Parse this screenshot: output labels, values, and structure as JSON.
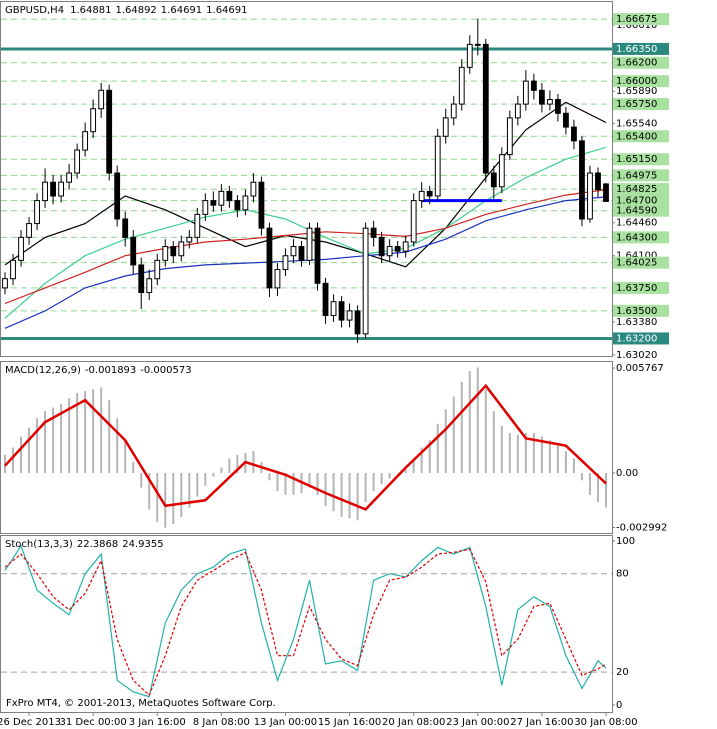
{
  "chart_data": [
    {
      "type": "candlestick",
      "title": "GBPUSD,H4",
      "xlim": [
        -0.5,
        75.75
      ],
      "ylim": [
        1.6302,
        1.6685
      ],
      "open": [
        1.6375,
        1.6385,
        1.6405,
        1.643,
        1.6445,
        1.647,
        1.649,
        1.6475,
        1.649,
        1.65,
        1.6525,
        1.6545,
        1.657,
        1.659,
        1.65,
        1.645,
        1.643,
        1.64,
        1.637,
        1.6385,
        1.6405,
        1.642,
        1.641,
        1.6425,
        1.643,
        1.6455,
        1.647,
        1.6465,
        1.648,
        1.647,
        1.646,
        1.6475,
        1.649,
        1.644,
        1.6375,
        1.6395,
        1.641,
        1.642,
        1.6405,
        1.644,
        1.638,
        1.6345,
        1.636,
        1.634,
        1.635,
        1.6325,
        1.644,
        1.643,
        1.641,
        1.642,
        1.6415,
        1.6425,
        1.647,
        1.648,
        1.6475,
        1.654,
        1.656,
        1.6575,
        1.6615,
        1.664,
        1.664,
        1.65,
        1.6485,
        1.652,
        1.656,
        1.6575,
        1.66,
        1.659,
        1.6575,
        1.658,
        1.6565,
        1.655,
        1.6535,
        1.645,
        1.65,
        1.64881
      ],
      "high": [
        1.6392,
        1.6412,
        1.6438,
        1.6452,
        1.6478,
        1.6505,
        1.6498,
        1.6498,
        1.651,
        1.6532,
        1.6555,
        1.658,
        1.6598,
        1.6596,
        1.6508,
        1.6458,
        1.6438,
        1.6408,
        1.6395,
        1.6412,
        1.6428,
        1.6426,
        1.6432,
        1.6438,
        1.6462,
        1.6478,
        1.648,
        1.6488,
        1.6486,
        1.6476,
        1.6482,
        1.65,
        1.6496,
        1.6446,
        1.6402,
        1.6418,
        1.6428,
        1.6426,
        1.6446,
        1.6446,
        1.6386,
        1.6368,
        1.6366,
        1.6358,
        1.6356,
        1.6446,
        1.6448,
        1.6436,
        1.6428,
        1.6426,
        1.6432,
        1.6478,
        1.649,
        1.6486,
        1.6548,
        1.657,
        1.6584,
        1.6624,
        1.665,
        1.6668,
        1.6646,
        1.6508,
        1.6528,
        1.6568,
        1.6584,
        1.6612,
        1.6608,
        1.6598,
        1.659,
        1.6586,
        1.6572,
        1.6558,
        1.654,
        1.6508,
        1.6506,
        1.64892
      ],
      "low": [
        1.6368,
        1.6378,
        1.6398,
        1.6422,
        1.6438,
        1.6462,
        1.6466,
        1.6468,
        1.6482,
        1.6494,
        1.6518,
        1.6538,
        1.656,
        1.6492,
        1.6442,
        1.642,
        1.639,
        1.6352,
        1.6362,
        1.6378,
        1.6398,
        1.6402,
        1.6404,
        1.6418,
        1.6424,
        1.6448,
        1.6458,
        1.6458,
        1.6462,
        1.6452,
        1.6454,
        1.6468,
        1.6432,
        1.6365,
        1.6366,
        1.6388,
        1.6402,
        1.6398,
        1.64,
        1.6372,
        1.6336,
        1.6338,
        1.6332,
        1.6332,
        1.6315,
        1.632,
        1.642,
        1.6402,
        1.6404,
        1.6408,
        1.6408,
        1.642,
        1.6462,
        1.6466,
        1.647,
        1.6532,
        1.6552,
        1.6568,
        1.6608,
        1.6628,
        1.649,
        1.6472,
        1.6478,
        1.6514,
        1.6552,
        1.6568,
        1.658,
        1.6566,
        1.6568,
        1.6556,
        1.6542,
        1.6526,
        1.6442,
        1.6446,
        1.6474,
        1.64691
      ],
      "close": [
        1.6385,
        1.6405,
        1.643,
        1.6445,
        1.647,
        1.649,
        1.6475,
        1.649,
        1.65,
        1.6525,
        1.6545,
        1.657,
        1.659,
        1.65,
        1.645,
        1.643,
        1.64,
        1.637,
        1.6385,
        1.6405,
        1.642,
        1.641,
        1.6425,
        1.643,
        1.6455,
        1.647,
        1.6465,
        1.648,
        1.647,
        1.646,
        1.6475,
        1.649,
        1.644,
        1.6375,
        1.6395,
        1.641,
        1.642,
        1.6405,
        1.644,
        1.638,
        1.6345,
        1.636,
        1.634,
        1.635,
        1.6325,
        1.644,
        1.643,
        1.641,
        1.642,
        1.6415,
        1.6425,
        1.647,
        1.648,
        1.6475,
        1.654,
        1.656,
        1.6575,
        1.6615,
        1.664,
        1.664,
        1.65,
        1.6485,
        1.652,
        1.656,
        1.6575,
        1.66,
        1.659,
        1.6575,
        1.658,
        1.6565,
        1.655,
        1.6535,
        1.645,
        1.65,
        1.6482,
        1.64691
      ],
      "up_color": "#ffffff",
      "down_color": "#000000",
      "series": [
        {
          "color": "#000000",
          "x": [
            0,
            5,
            10,
            15,
            20,
            25,
            30,
            35,
            40,
            45,
            50,
            55,
            60,
            65,
            70,
            75
          ],
          "values": [
            1.64,
            1.643,
            1.6445,
            1.6475,
            1.646,
            1.644,
            1.642,
            1.6432,
            1.6425,
            1.6412,
            1.6398,
            1.644,
            1.6495,
            1.6547,
            1.6577,
            1.6555
          ]
        },
        {
          "color": "#3ccf8e",
          "x": [
            0,
            5,
            10,
            15,
            20,
            25,
            30,
            35,
            40,
            45,
            50,
            55,
            60,
            65,
            70,
            75
          ],
          "values": [
            1.6342,
            1.638,
            1.641,
            1.6428,
            1.644,
            1.6452,
            1.646,
            1.645,
            1.643,
            1.6412,
            1.6418,
            1.644,
            1.647,
            1.6495,
            1.6515,
            1.6528
          ]
        },
        {
          "color": "#d02020",
          "x": [
            0,
            5,
            10,
            15,
            20,
            25,
            30,
            35,
            40,
            45,
            50,
            55,
            60,
            65,
            70,
            75
          ],
          "values": [
            1.6358,
            1.6375,
            1.6392,
            1.641,
            1.6418,
            1.6425,
            1.6428,
            1.6432,
            1.6436,
            1.6434,
            1.6431,
            1.644,
            1.6455,
            1.6466,
            1.6476,
            1.6482
          ]
        },
        {
          "color": "#1a30c0",
          "x": [
            0,
            5,
            10,
            15,
            20,
            25,
            30,
            35,
            40,
            45,
            50,
            55,
            60,
            65,
            70,
            75
          ],
          "values": [
            1.6331,
            1.635,
            1.6375,
            1.6388,
            1.6396,
            1.64,
            1.6402,
            1.6404,
            1.6406,
            1.641,
            1.6414,
            1.6428,
            1.6448,
            1.646,
            1.647,
            1.6474
          ]
        }
      ],
      "segment": {
        "value": 1.647,
        "x": [
          52,
          62
        ],
        "color": "#0000ff"
      },
      "yticks": [
        {
          "value": 1.6661,
          "label": "1.66610"
        },
        {
          "value": 1.6589,
          "label": "1.65890"
        },
        {
          "value": 1.6554,
          "label": "1.65540"
        },
        {
          "value": 1.6446,
          "label": "1.64460"
        },
        {
          "value": 1.641,
          "label": "1.64100"
        },
        {
          "value": 1.6338,
          "label": "1.63380"
        },
        {
          "value": 1.6302,
          "label": "1.63020"
        }
      ],
      "levels": [
        {
          "value": 1.66675,
          "label": "1.66675"
        },
        {
          "value": 1.662,
          "label": "1.66200"
        },
        {
          "value": 1.66,
          "label": "1.66000"
        },
        {
          "value": 1.6575,
          "label": "1.65750"
        },
        {
          "value": 1.654,
          "label": "1.65400"
        },
        {
          "value": 1.6515,
          "label": "1.65150"
        },
        {
          "value": 1.64975,
          "label": "1.64975"
        },
        {
          "value": 1.64825,
          "label": "1.64825"
        },
        {
          "value": 1.647,
          "label": "1.64700"
        },
        {
          "value": 1.6459,
          "label": "1.64590"
        },
        {
          "value": 1.643,
          "label": "1.64300"
        },
        {
          "value": 1.64025,
          "label": "1.64025"
        },
        {
          "value": 1.6375,
          "label": "1.63750"
        },
        {
          "value": 1.635,
          "label": "1.63500"
        }
      ],
      "level_color": "#8fd68f",
      "level_box": "#a9e2a0",
      "key_levels": [
        {
          "value": 1.6635,
          "label": "1.66350"
        },
        {
          "value": 1.632,
          "label": "1.63200"
        }
      ],
      "key_color": "#2a8a80"
    },
    {
      "type": "bar",
      "title": "MACD(12,26,9)",
      "xlim": [
        -0.5,
        75.75
      ],
      "ylim": [
        -0.00324,
        0.00599
      ],
      "yticks": [
        0.005767,
        {
          "value": 0,
          "label": "0.00"
        },
        -0.002992
      ],
      "series": [
        {
          "type": "bar",
          "color": "#b4b4b4",
          "values": [
            0.001,
            0.0014,
            0.002,
            0.0025,
            0.003,
            0.0034,
            0.0036,
            0.0038,
            0.0041,
            0.0044,
            0.0045,
            0.0046,
            0.0047,
            0.004,
            0.003,
            0.0018,
            0.0006,
            -0.0008,
            -0.002,
            -0.0027,
            -0.003,
            -0.0028,
            -0.0024,
            -0.0019,
            -0.0013,
            -0.0007,
            -0.0002,
            0.0003,
            0.0008,
            0.001,
            0.0011,
            0.0012,
            0.0006,
            -0.0004,
            -0.001,
            -0.0012,
            -0.0012,
            -0.0011,
            -0.0008,
            -0.0012,
            -0.0018,
            -0.0021,
            -0.0024,
            -0.0025,
            -0.0026,
            -0.0016,
            -0.001,
            -0.0006,
            -0.0003,
            0.0,
            0.0002,
            0.0008,
            0.0014,
            0.0018,
            0.0027,
            0.0035,
            0.0042,
            0.005,
            0.0056,
            0.0058,
            0.0046,
            0.0034,
            0.0026,
            0.0022,
            0.0021,
            0.0022,
            0.0022,
            0.002,
            0.0018,
            0.0015,
            0.0012,
            0.0008,
            -0.0004,
            -0.0012,
            -0.0016,
            -0.001893
          ]
        },
        {
          "type": "line",
          "color": "#e00000",
          "width": 2.5,
          "x": [
            0,
            5,
            10,
            15,
            20,
            25,
            30,
            35,
            40,
            45,
            50,
            55,
            60,
            65,
            70,
            75
          ],
          "values": [
            0.0004,
            0.0028,
            0.004,
            0.0018,
            -0.0018,
            -0.0015,
            0.0006,
            -0.0001,
            -0.0011,
            -0.002,
            0.0003,
            0.0024,
            0.0048,
            0.0019,
            0.0015,
            -0.000573
          ]
        }
      ]
    },
    {
      "type": "line",
      "title": "Stoch(13,3,3)",
      "xlim": [
        -0.5,
        75.75
      ],
      "ylim": [
        -4.3,
        102.4
      ],
      "yticks": [
        100,
        0
      ],
      "levels": [
        80,
        20
      ],
      "level_color": "#a0a0a0",
      "series": [
        {
          "color": "#20b2aa",
          "x": [
            0,
            2,
            4,
            6,
            8,
            10,
            12,
            14,
            16,
            18,
            20,
            22,
            24,
            26,
            28,
            30,
            32,
            34,
            36,
            38,
            40,
            42,
            44,
            46,
            48,
            50,
            52,
            54,
            56,
            58,
            60,
            62,
            64,
            66,
            68,
            70,
            72,
            74,
            75
          ],
          "values": [
            82,
            97,
            70,
            62,
            55,
            80,
            92,
            15,
            8,
            5,
            50,
            70,
            80,
            84,
            92,
            95,
            50,
            15,
            40,
            76,
            25,
            27,
            21,
            76,
            80,
            78,
            88,
            96,
            92,
            96,
            60,
            12,
            58,
            66,
            60,
            30,
            10,
            27,
            22.3868
          ]
        },
        {
          "color": "#e00000",
          "style": "dashed",
          "x": [
            0,
            2,
            4,
            6,
            8,
            10,
            12,
            14,
            16,
            18,
            20,
            22,
            24,
            26,
            28,
            30,
            32,
            34,
            36,
            38,
            40,
            42,
            44,
            46,
            48,
            50,
            52,
            54,
            56,
            58,
            60,
            62,
            64,
            66,
            68,
            70,
            72,
            74,
            75
          ],
          "values": [
            84,
            92,
            80,
            66,
            58,
            68,
            88,
            40,
            15,
            6,
            30,
            60,
            76,
            82,
            88,
            93,
            70,
            30,
            30,
            60,
            40,
            28,
            24,
            55,
            76,
            78,
            84,
            92,
            93,
            95,
            75,
            30,
            40,
            60,
            62,
            40,
            18,
            22,
            24.9355
          ]
        }
      ],
      "xticks": [
        {
          "value": 3,
          "label": "26 Dec 2013"
        },
        {
          "value": 11,
          "label": "31 Dec 00:00"
        },
        {
          "value": 19,
          "label": "3 Jan 16:00"
        },
        {
          "value": 27,
          "label": "8 Jan 08:00"
        },
        {
          "value": 35,
          "label": "13 Jan 00:00"
        },
        {
          "value": 43,
          "label": "15 Jan 16:00"
        },
        {
          "value": 51,
          "label": "20 Jan 08:00"
        },
        {
          "value": 59,
          "label": "23 Jan 00:00"
        },
        {
          "value": 67,
          "label": "27 Jan 16:00"
        },
        {
          "value": 75,
          "label": "30 Jan 08:00"
        }
      ]
    }
  ],
  "watermark": "FxPro MT4, © 2001-2013, MetaQuotes Software Corp."
}
